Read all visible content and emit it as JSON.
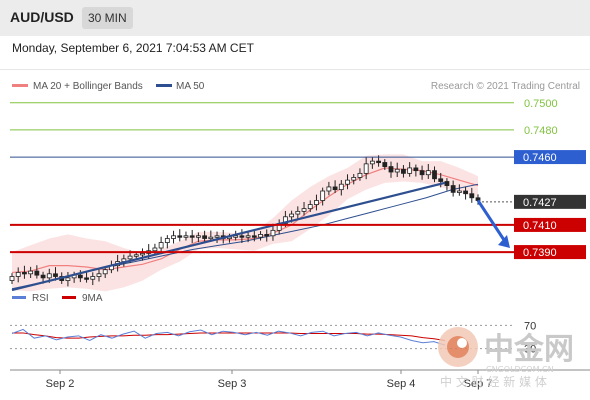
{
  "header": {
    "pair": "AUD/USD",
    "timeframe": "30 MIN",
    "datetime": "Monday, September 6, 2021 7:04:53 AM CET"
  },
  "colors": {
    "resistance": "#82c341",
    "ma50": "#2e4f8f",
    "bollinger": "#f08080",
    "support": "#cc0000",
    "last_price": "#333333",
    "rsi": "#5b7fd6",
    "rsi_ma": "#cc0000",
    "candle": "#222222"
  },
  "chart_data": {
    "type": "candlestick",
    "instrument": "AUD/USD",
    "timeframe": "30 MIN",
    "legend": [
      {
        "name": "MA 20 + Bollinger Bands",
        "color": "#f08080"
      },
      {
        "name": "MA 50",
        "color": "#2e4f8f"
      }
    ],
    "credit": "Research © 2021 Trading Central",
    "y_axis": {
      "min": 0.7365,
      "max": 0.7505
    },
    "x_axis": {
      "range": [
        "2021-09-01 23:00",
        "2021-09-06 08:00"
      ],
      "tick_labels": [
        "Sep 2",
        "Sep 3",
        "Sep 4",
        "Sep 7"
      ]
    },
    "price_levels": [
      {
        "label": "0.7500",
        "value": 0.75,
        "kind": "resistance"
      },
      {
        "label": "0.7480",
        "value": 0.748,
        "kind": "resistance"
      },
      {
        "label": "0.7460",
        "value": 0.746,
        "kind": "pivot"
      },
      {
        "label": "0.7427",
        "value": 0.7427,
        "kind": "last"
      },
      {
        "label": "0.7410",
        "value": 0.741,
        "kind": "support"
      },
      {
        "label": "0.7390",
        "value": 0.739,
        "kind": "support"
      }
    ],
    "close_series": [
      0.7372,
      0.7375,
      0.7374,
      0.7376,
      0.7373,
      0.7371,
      0.7374,
      0.7372,
      0.7369,
      0.7371,
      0.7373,
      0.7371,
      0.737,
      0.7372,
      0.7374,
      0.7377,
      0.738,
      0.7383,
      0.7385,
      0.7387,
      0.7388,
      0.7389,
      0.7391,
      0.7393,
      0.7397,
      0.74,
      0.7402,
      0.7401,
      0.7402,
      0.7401,
      0.7402,
      0.74,
      0.7401,
      0.7402,
      0.74,
      0.7401,
      0.7402,
      0.7401,
      0.7402,
      0.7401,
      0.7403,
      0.7402,
      0.7406,
      0.7411,
      0.7416,
      0.7418,
      0.742,
      0.7422,
      0.7425,
      0.7428,
      0.7435,
      0.7438,
      0.7436,
      0.744,
      0.7443,
      0.7445,
      0.7448,
      0.7455,
      0.7457,
      0.7456,
      0.7453,
      0.7449,
      0.7451,
      0.7448,
      0.7452,
      0.745,
      0.7447,
      0.745,
      0.7444,
      0.7442,
      0.7439,
      0.7434,
      0.7435,
      0.7433,
      0.743,
      0.7428
    ],
    "bollinger": {
      "upper": [
        0.739,
        0.7395,
        0.74,
        0.7403,
        0.74,
        0.7398,
        0.7393,
        0.7389,
        0.7392,
        0.7398,
        0.7405,
        0.7405,
        0.7404,
        0.7405,
        0.7415,
        0.7428,
        0.7438,
        0.7446,
        0.7452,
        0.7461,
        0.7462,
        0.7462,
        0.7457,
        0.7457,
        0.7452,
        0.7446
      ],
      "lower": [
        0.7362,
        0.7361,
        0.7363,
        0.7364,
        0.7363,
        0.7361,
        0.7364,
        0.7369,
        0.7377,
        0.7383,
        0.7392,
        0.7393,
        0.7392,
        0.7391,
        0.7396,
        0.7398,
        0.7407,
        0.7417,
        0.7429,
        0.7436,
        0.7441,
        0.7442,
        0.7441,
        0.7438,
        0.7434,
        0.743
      ],
      "ma20": [
        0.7375,
        0.7376,
        0.738,
        0.738,
        0.7379,
        0.7377,
        0.7379,
        0.7381,
        0.7385,
        0.7392,
        0.7398,
        0.7399,
        0.7399,
        0.74,
        0.7404,
        0.741,
        0.7421,
        0.7431,
        0.744,
        0.7447,
        0.7452,
        0.7451,
        0.745,
        0.7447,
        0.7443,
        0.7439
      ]
    },
    "ma50": [
      0.7363,
      0.7367,
      0.7371,
      0.7376,
      0.738,
      0.7384,
      0.7388,
      0.7392,
      0.7395,
      0.7398,
      0.7402,
      0.7406,
      0.741,
      0.7415,
      0.742,
      0.7425,
      0.743,
      0.7436,
      0.744
    ],
    "trendline": {
      "start": 0.7362,
      "end": 0.7441
    },
    "forecast_target": 0.7393,
    "rsi": {
      "levels": [
        {
          "label": "70",
          "value": 70
        },
        {
          "label": "30",
          "value": 30
        }
      ],
      "rsi": [
        56,
        63,
        48,
        52,
        45,
        50,
        52,
        44,
        54,
        48,
        55,
        60,
        48,
        56,
        58,
        52,
        59,
        62,
        54,
        60,
        58,
        54,
        58,
        53,
        60,
        57,
        52,
        58,
        60,
        52,
        56,
        58,
        52,
        57,
        53,
        50,
        44,
        40,
        42,
        36
      ],
      "ma9": [
        57,
        57,
        54,
        52,
        49,
        48,
        48,
        50,
        51,
        52,
        52,
        53,
        53,
        54,
        54,
        55,
        56,
        57,
        57,
        57,
        57,
        57,
        57,
        57,
        57,
        57,
        56,
        56,
        56,
        56,
        56,
        56,
        55,
        55,
        54,
        53,
        52,
        49,
        47,
        44
      ],
      "legend": [
        {
          "name": "RSI",
          "color": "#5b7fd6"
        },
        {
          "name": "9MA",
          "color": "#cc0000"
        }
      ]
    }
  },
  "watermark": {
    "name": "中金网",
    "url": "CNGOLDCOM.CN",
    "tagline": "中 文 财 经 新 媒 体"
  }
}
